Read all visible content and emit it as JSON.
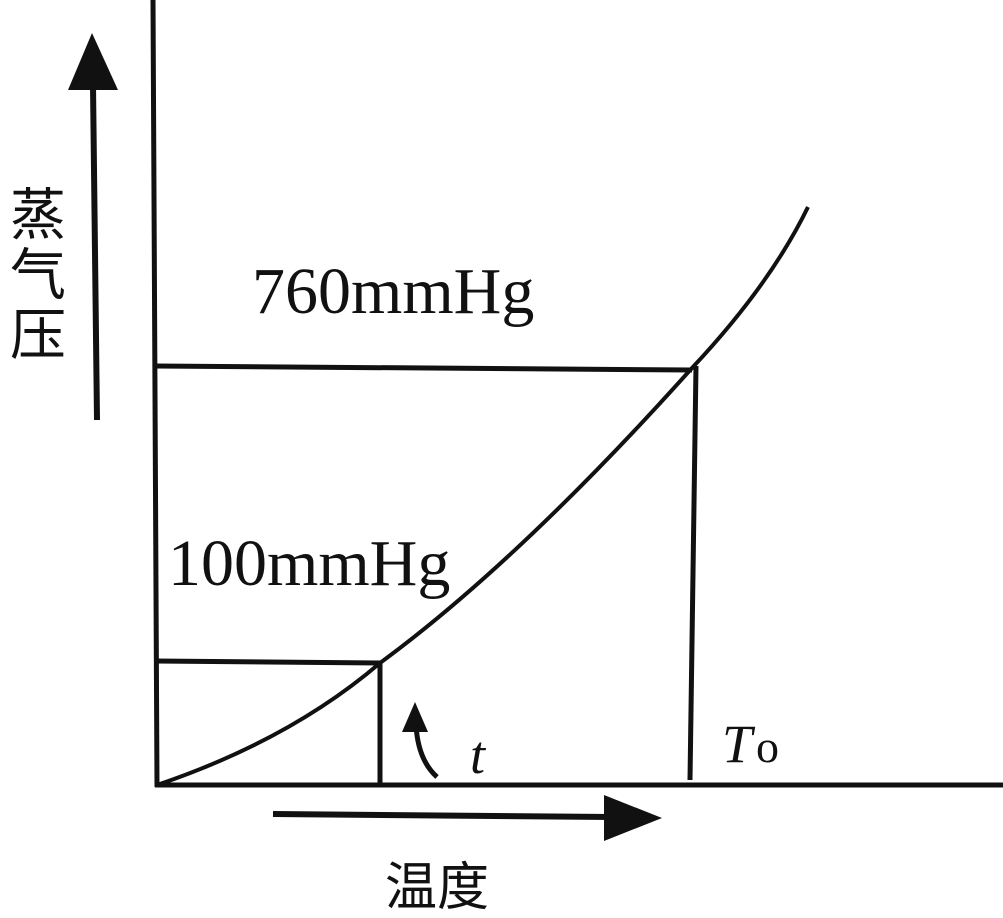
{
  "diagram": {
    "y_axis_label": "蒸气压",
    "x_axis_label": "温度",
    "pressure_high_label": "760mmHg",
    "pressure_low_label": "100mmHg",
    "temp_low_label": "t",
    "temp_high_label_main": "T",
    "temp_high_label_sub": "o",
    "colors": {
      "ink": "#111111",
      "background": "#ffffff"
    }
  }
}
